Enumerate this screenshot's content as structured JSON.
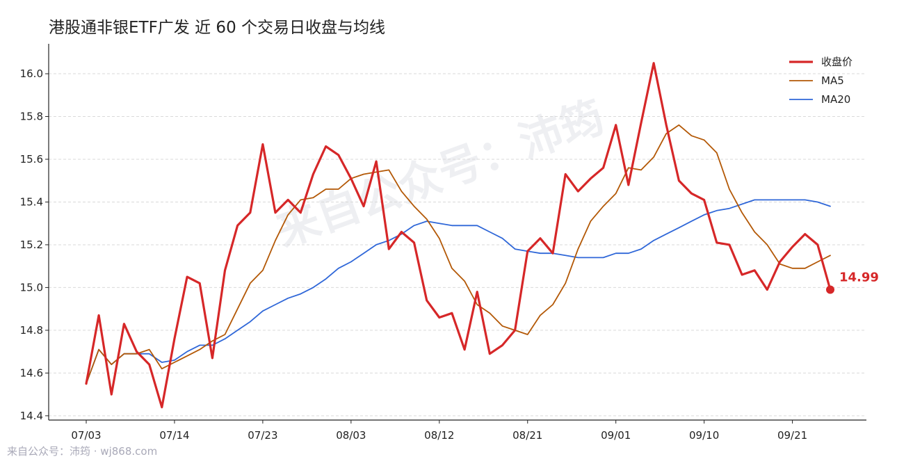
{
  "watermark": "来自公众号：沛筠",
  "footer": "来自公众号：沛筠 · wj868.com",
  "colors": {
    "close": "#d62728",
    "ma5": "#b35806",
    "ma20": "#2f67d8"
  },
  "chart_data": {
    "type": "line",
    "title": "港股通非银ETF广发 近 60 个交易日收盘与均线",
    "xlabel": "",
    "ylabel": "",
    "ylim": [
      14.38,
      16.14
    ],
    "yticks": [
      14.4,
      14.6,
      14.8,
      15.0,
      15.2,
      15.4,
      15.6,
      15.8,
      16.0
    ],
    "xtick_labels": [
      "07/03",
      "07/14",
      "07/23",
      "08/03",
      "08/12",
      "08/21",
      "09/01",
      "09/10",
      "09/21"
    ],
    "xtick_index": [
      0,
      7,
      14,
      21,
      28,
      35,
      42,
      49,
      56
    ],
    "grid": "horizontal dashed",
    "legend_position": "top-right",
    "last_value_label": "14.99",
    "series": [
      {
        "name": "收盘价",
        "values": [
          14.55,
          14.87,
          14.5,
          14.83,
          14.7,
          14.64,
          14.44,
          14.76,
          15.05,
          15.02,
          14.67,
          15.08,
          15.29,
          15.35,
          15.67,
          15.35,
          15.41,
          15.35,
          15.53,
          15.66,
          15.62,
          15.51,
          15.38,
          15.59,
          15.18,
          15.26,
          15.21,
          14.94,
          14.86,
          14.88,
          14.71,
          14.98,
          14.69,
          14.73,
          14.8,
          15.17,
          15.23,
          15.16,
          15.53,
          15.45,
          15.51,
          15.56,
          15.76,
          15.48,
          15.77,
          16.05,
          15.76,
          15.5,
          15.44,
          15.41,
          15.21,
          15.2,
          15.06,
          15.08,
          14.99,
          15.12,
          15.19,
          15.25,
          15.2,
          14.99
        ]
      },
      {
        "name": "MA5",
        "values": [
          14.55,
          14.71,
          14.64,
          14.69,
          14.69,
          14.71,
          14.62,
          14.65,
          14.68,
          14.71,
          14.75,
          14.78,
          14.9,
          15.02,
          15.08,
          15.22,
          15.34,
          15.41,
          15.42,
          15.46,
          15.46,
          15.51,
          15.53,
          15.54,
          15.55,
          15.45,
          15.38,
          15.32,
          15.23,
          15.09,
          15.03,
          14.92,
          14.88,
          14.82,
          14.8,
          14.78,
          14.87,
          14.92,
          15.02,
          15.18,
          15.31,
          15.38,
          15.44,
          15.56,
          15.55,
          15.61,
          15.72,
          15.76,
          15.71,
          15.69,
          15.63,
          15.46,
          15.35,
          15.26,
          15.2,
          15.11,
          15.09,
          15.09,
          15.12,
          15.15
        ]
      },
      {
        "name": "MA20",
        "values": [
          14.55,
          14.71,
          14.64,
          14.69,
          14.69,
          14.69,
          14.65,
          14.66,
          14.7,
          14.73,
          14.73,
          14.76,
          14.8,
          14.84,
          14.89,
          14.92,
          14.95,
          14.97,
          15.0,
          15.04,
          15.09,
          15.12,
          15.16,
          15.2,
          15.22,
          15.25,
          15.29,
          15.31,
          15.3,
          15.29,
          15.29,
          15.29,
          15.26,
          15.23,
          15.18,
          15.17,
          15.16,
          15.16,
          15.15,
          15.14,
          15.14,
          15.14,
          15.16,
          15.16,
          15.18,
          15.22,
          15.25,
          15.28,
          15.31,
          15.34,
          15.36,
          15.37,
          15.39,
          15.41,
          15.41,
          15.41,
          15.41,
          15.41,
          15.4,
          15.38
        ]
      }
    ]
  }
}
